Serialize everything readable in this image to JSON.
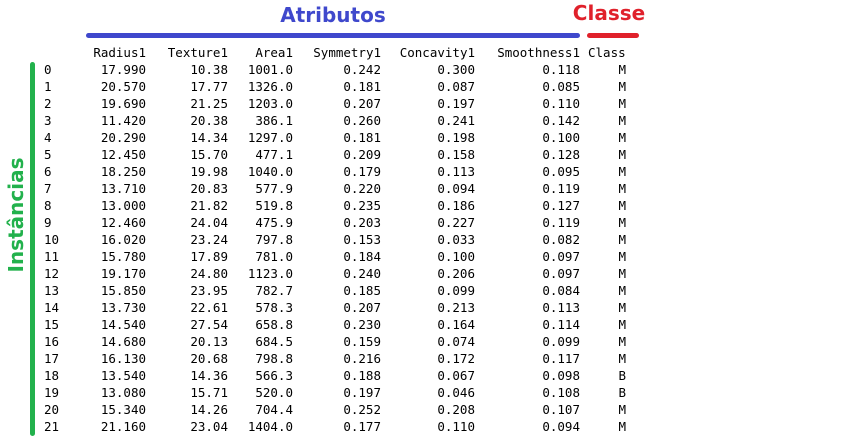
{
  "labels": {
    "attributes": "Atributos",
    "class": "Classe",
    "instances": "Instâncias"
  },
  "colors": {
    "attributes": "#3f48cc",
    "class": "#e0212b",
    "instances": "#22b14c",
    "text": "#000000"
  },
  "table": {
    "columns": [
      "",
      "Radius1",
      "Texture1",
      "Area1",
      "Symmetry1",
      "Concavity1",
      "Smoothness1",
      "Class"
    ],
    "rows": [
      [
        "0",
        "17.990",
        "10.38",
        "1001.0",
        "0.242",
        "0.300",
        "0.118",
        "M"
      ],
      [
        "1",
        "20.570",
        "17.77",
        "1326.0",
        "0.181",
        "0.087",
        "0.085",
        "M"
      ],
      [
        "2",
        "19.690",
        "21.25",
        "1203.0",
        "0.207",
        "0.197",
        "0.110",
        "M"
      ],
      [
        "3",
        "11.420",
        "20.38",
        "386.1",
        "0.260",
        "0.241",
        "0.142",
        "M"
      ],
      [
        "4",
        "20.290",
        "14.34",
        "1297.0",
        "0.181",
        "0.198",
        "0.100",
        "M"
      ],
      [
        "5",
        "12.450",
        "15.70",
        "477.1",
        "0.209",
        "0.158",
        "0.128",
        "M"
      ],
      [
        "6",
        "18.250",
        "19.98",
        "1040.0",
        "0.179",
        "0.113",
        "0.095",
        "M"
      ],
      [
        "7",
        "13.710",
        "20.83",
        "577.9",
        "0.220",
        "0.094",
        "0.119",
        "M"
      ],
      [
        "8",
        "13.000",
        "21.82",
        "519.8",
        "0.235",
        "0.186",
        "0.127",
        "M"
      ],
      [
        "9",
        "12.460",
        "24.04",
        "475.9",
        "0.203",
        "0.227",
        "0.119",
        "M"
      ],
      [
        "10",
        "16.020",
        "23.24",
        "797.8",
        "0.153",
        "0.033",
        "0.082",
        "M"
      ],
      [
        "11",
        "15.780",
        "17.89",
        "781.0",
        "0.184",
        "0.100",
        "0.097",
        "M"
      ],
      [
        "12",
        "19.170",
        "24.80",
        "1123.0",
        "0.240",
        "0.206",
        "0.097",
        "M"
      ],
      [
        "13",
        "15.850",
        "23.95",
        "782.7",
        "0.185",
        "0.099",
        "0.084",
        "M"
      ],
      [
        "14",
        "13.730",
        "22.61",
        "578.3",
        "0.207",
        "0.213",
        "0.113",
        "M"
      ],
      [
        "15",
        "14.540",
        "27.54",
        "658.8",
        "0.230",
        "0.164",
        "0.114",
        "M"
      ],
      [
        "16",
        "14.680",
        "20.13",
        "684.5",
        "0.159",
        "0.074",
        "0.099",
        "M"
      ],
      [
        "17",
        "16.130",
        "20.68",
        "798.8",
        "0.216",
        "0.172",
        "0.117",
        "M"
      ],
      [
        "18",
        "13.540",
        "14.36",
        "566.3",
        "0.188",
        "0.067",
        "0.098",
        "B"
      ],
      [
        "19",
        "13.080",
        "15.71",
        "520.0",
        "0.197",
        "0.046",
        "0.108",
        "B"
      ],
      [
        "20",
        "15.340",
        "14.26",
        "704.4",
        "0.252",
        "0.208",
        "0.107",
        "M"
      ],
      [
        "21",
        "21.160",
        "23.04",
        "1404.0",
        "0.177",
        "0.110",
        "0.094",
        "M"
      ]
    ]
  }
}
